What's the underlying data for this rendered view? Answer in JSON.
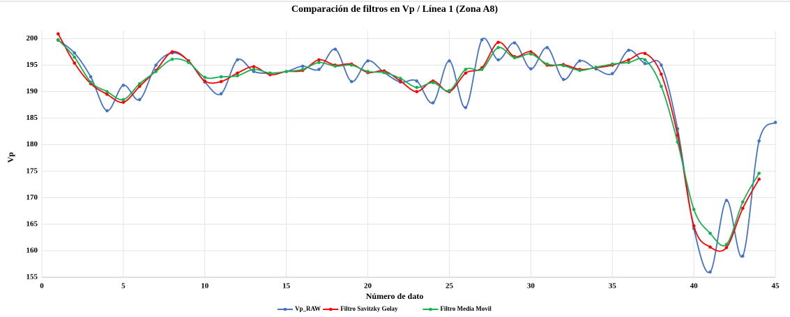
{
  "chart_data": {
    "type": "line",
    "title": "Comparación de filtros en Vp / Línea 1 (Zona A8)",
    "xlabel": "Número de dato",
    "ylabel": "Vp",
    "x": [
      1,
      2,
      3,
      4,
      5,
      6,
      7,
      8,
      9,
      10,
      11,
      12,
      13,
      14,
      15,
      16,
      17,
      18,
      19,
      20,
      21,
      22,
      23,
      24,
      25,
      26,
      27,
      28,
      29,
      30,
      31,
      32,
      33,
      34,
      35,
      36,
      37,
      38,
      39,
      40,
      41,
      42,
      43,
      44,
      45
    ],
    "series": [
      {
        "name": "Vp_RAW",
        "color": "#4472c4",
        "values": [
          199.7,
          197.3,
          192.8,
          186.4,
          191.2,
          188.5,
          195,
          197.3,
          195.8,
          191.8,
          189.6,
          196,
          193.8,
          193.5,
          193.8,
          194.8,
          194.2,
          198,
          191.9,
          195.8,
          193.6,
          191.8,
          192,
          187.9,
          195.8,
          187,
          199.8,
          196,
          199.2,
          194.3,
          198.3,
          192.3,
          195.8,
          194.3,
          193.4,
          197.8,
          195.3,
          195,
          183,
          164.2,
          156,
          169.5,
          159,
          180.7,
          184.2
        ]
      },
      {
        "name": "Filtro Savitzky Golay",
        "color": "#ff0000",
        "values": [
          200.9,
          195.4,
          191.5,
          189.5,
          188,
          191,
          194,
          197.5,
          195.8,
          192,
          191.9,
          193.5,
          194.7,
          193.2,
          193.8,
          194,
          196,
          195,
          195.2,
          193.6,
          193.9,
          192,
          190,
          192,
          190,
          193.5,
          194.5,
          199.3,
          196.6,
          197.5,
          195,
          195.1,
          194.2,
          194.5,
          195,
          196,
          197.2,
          193.3,
          181.8,
          164.7,
          160.7,
          160.6,
          168,
          173.5,
          null
        ]
      },
      {
        "name": "Filtro Media Movil",
        "color": "#17b050",
        "values": [
          199.8,
          196.5,
          191.8,
          190,
          188.5,
          191.5,
          193.8,
          196.1,
          195.5,
          192.7,
          192.8,
          193,
          194.2,
          193.5,
          193.8,
          194.2,
          195.5,
          194.8,
          195,
          193.8,
          193.6,
          192.5,
          190.8,
          191.7,
          190.2,
          194.2,
          194.2,
          198.3,
          196.4,
          197.1,
          195.2,
          194.9,
          194,
          194.6,
          195.2,
          195.5,
          196,
          191,
          180.5,
          167.8,
          163.3,
          161.2,
          169.2,
          174.6,
          null
        ]
      }
    ],
    "xlim": [
      0,
      45
    ],
    "xticks": [
      0,
      5,
      10,
      15,
      20,
      25,
      30,
      35,
      40,
      45
    ],
    "ylim": [
      155,
      201.5
    ],
    "yticks": [
      155,
      160,
      165,
      170,
      175,
      180,
      185,
      190,
      195,
      200
    ],
    "grid": true,
    "legend": "bottom"
  }
}
